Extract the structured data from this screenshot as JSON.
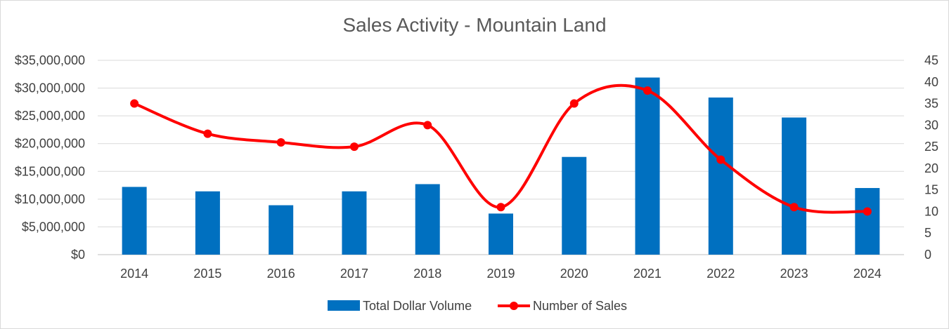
{
  "chart_data": {
    "type": "bar",
    "title": "Sales Activity - Mountain Land",
    "categories": [
      "2014",
      "2015",
      "2016",
      "2017",
      "2018",
      "2019",
      "2020",
      "2021",
      "2022",
      "2023",
      "2024"
    ],
    "series": [
      {
        "name": "Total Dollar Volume",
        "type": "bar",
        "axis": "left",
        "color": "#0070c0",
        "values": [
          12200000,
          11400000,
          8900000,
          11400000,
          12700000,
          7400000,
          17600000,
          31900000,
          28300000,
          24700000,
          12000000
        ]
      },
      {
        "name": "Number of Sales",
        "type": "line",
        "smooth": true,
        "axis": "right",
        "color": "#ff0000",
        "values": [
          35,
          28,
          26,
          25,
          30,
          11,
          35,
          38,
          22,
          11,
          10
        ]
      }
    ],
    "y_left": {
      "ylim": [
        0,
        35000000
      ],
      "ticks": [
        0,
        5000000,
        10000000,
        15000000,
        20000000,
        25000000,
        30000000,
        35000000
      ],
      "tick_labels": [
        "$0",
        "$5,000,000",
        "$10,000,000",
        "$15,000,000",
        "$20,000,000",
        "$25,000,000",
        "$30,000,000",
        "$35,000,000"
      ]
    },
    "y_right": {
      "ylim": [
        0,
        45
      ],
      "ticks": [
        0,
        5,
        10,
        15,
        20,
        25,
        30,
        35,
        40,
        45
      ],
      "tick_labels": [
        "0",
        "5",
        "10",
        "15",
        "20",
        "25",
        "30",
        "35",
        "40",
        "45"
      ]
    },
    "grid": true,
    "legend": "bottom",
    "xlabel": "",
    "ylabel": ""
  }
}
